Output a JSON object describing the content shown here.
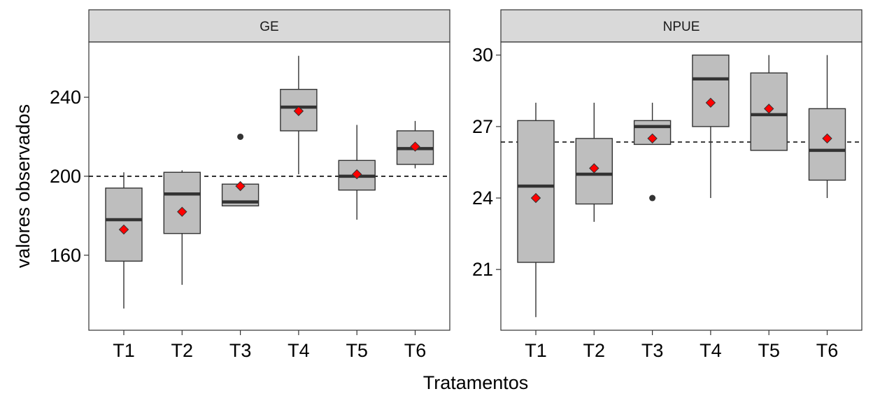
{
  "xlabel": "Tratamentos",
  "ylabel": "valores observados",
  "colors": {
    "box_fill": "#bebebe",
    "box_stroke": "#333333",
    "median": "#333333",
    "mean_marker": "#ff0000",
    "outlier": "#333333"
  },
  "chart_data": [
    {
      "type": "boxplot",
      "title": "GE",
      "categories": [
        "T1",
        "T2",
        "T3",
        "T4",
        "T5",
        "T6"
      ],
      "ylim": [
        122,
        268
      ],
      "yticks": [
        160,
        200,
        240
      ],
      "reference_line": 200,
      "boxes": [
        {
          "name": "T1",
          "whisker_low": 133,
          "q1": 157,
          "median": 178,
          "q3": 194,
          "whisker_high": 202,
          "mean": 173,
          "outliers": []
        },
        {
          "name": "T2",
          "whisker_low": 145,
          "q1": 171,
          "median": 191,
          "q3": 202,
          "whisker_high": 203,
          "mean": 182,
          "outliers": []
        },
        {
          "name": "T3",
          "whisker_low": 185,
          "q1": 185,
          "median": 187,
          "q3": 196,
          "whisker_high": 196,
          "mean": 195,
          "outliers": [
            220
          ]
        },
        {
          "name": "T4",
          "whisker_low": 201,
          "q1": 223,
          "median": 235,
          "q3": 244,
          "whisker_high": 261,
          "mean": 233,
          "outliers": []
        },
        {
          "name": "T5",
          "whisker_low": 178,
          "q1": 193,
          "median": 200,
          "q3": 208,
          "whisker_high": 226,
          "mean": 201,
          "outliers": []
        },
        {
          "name": "T6",
          "whisker_low": 204,
          "q1": 206,
          "median": 214,
          "q3": 223,
          "whisker_high": 228,
          "mean": 215,
          "outliers": []
        }
      ]
    },
    {
      "type": "boxplot",
      "title": "NPUE",
      "categories": [
        "T1",
        "T2",
        "T3",
        "T4",
        "T5",
        "T6"
      ],
      "ylim": [
        18.45,
        30.55
      ],
      "yticks": [
        21,
        24,
        27,
        30
      ],
      "reference_line": 26.35,
      "boxes": [
        {
          "name": "T1",
          "whisker_low": 19,
          "q1": 21.3,
          "median": 24.5,
          "q3": 27.25,
          "whisker_high": 28,
          "mean": 24,
          "outliers": []
        },
        {
          "name": "T2",
          "whisker_low": 23,
          "q1": 23.75,
          "median": 25,
          "q3": 26.5,
          "whisker_high": 28,
          "mean": 25.25,
          "outliers": []
        },
        {
          "name": "T3",
          "whisker_low": 26.25,
          "q1": 26.25,
          "median": 27,
          "q3": 27.25,
          "whisker_high": 28,
          "mean": 26.5,
          "outliers": [
            24
          ]
        },
        {
          "name": "T4",
          "whisker_low": 24,
          "q1": 27,
          "median": 29,
          "q3": 30,
          "whisker_high": 30,
          "mean": 28,
          "outliers": []
        },
        {
          "name": "T5",
          "whisker_low": 26,
          "q1": 26,
          "median": 27.5,
          "q3": 29.25,
          "whisker_high": 30,
          "mean": 27.75,
          "outliers": []
        },
        {
          "name": "T6",
          "whisker_low": 24,
          "q1": 24.75,
          "median": 26,
          "q3": 27.75,
          "whisker_high": 30,
          "mean": 26.5,
          "outliers": []
        }
      ]
    }
  ]
}
